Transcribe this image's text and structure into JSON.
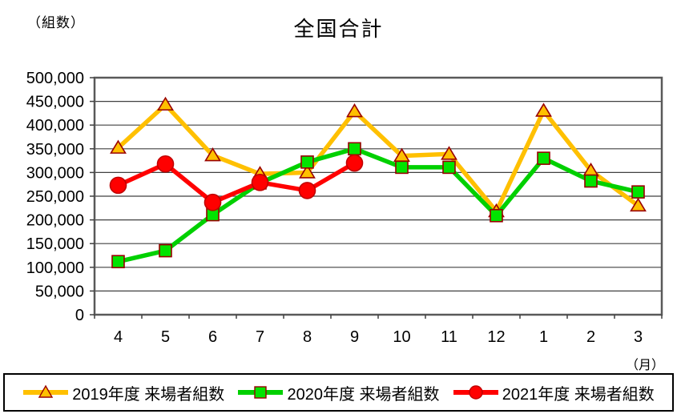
{
  "header": {
    "title": "全国合計",
    "y_axis_unit_label": "（組数）",
    "x_axis_unit_label": "（月）"
  },
  "chart_data": {
    "type": "line",
    "title": "全国合計",
    "ylabel": "（組数）",
    "xlabel": "（月）",
    "categories": [
      "4",
      "5",
      "6",
      "7",
      "8",
      "9",
      "10",
      "11",
      "12",
      "1",
      "2",
      "3"
    ],
    "ylim": [
      0,
      500000
    ],
    "ytick_step": 50000,
    "ytick_labels": [
      "0",
      "50,000",
      "100,000",
      "150,000",
      "200,000",
      "250,000",
      "300,000",
      "350,000",
      "400,000",
      "450,000",
      "500,000"
    ],
    "grid": true,
    "legend_position": "bottom",
    "frame_color": "#595959",
    "gridline_color": "#404040",
    "series": [
      {
        "name": "2019年度 来場者組数",
        "marker": "triangle",
        "line_color": "#FFC000",
        "marker_fill": "#FFC000",
        "marker_stroke": "#990000",
        "values": [
          352000,
          443000,
          336000,
          297000,
          300000,
          429000,
          335000,
          339000,
          218000,
          430000,
          304000,
          230000
        ]
      },
      {
        "name": "2020年度 来場者組数",
        "marker": "square",
        "line_color": "#00D000",
        "marker_fill": "#00E400",
        "marker_stroke": "#990000",
        "values": [
          112000,
          135000,
          211000,
          278000,
          322000,
          350000,
          311000,
          311000,
          209000,
          330000,
          282000,
          259000
        ]
      },
      {
        "name": "2021年度 来場者組数",
        "marker": "circle",
        "line_color": "#FF0000",
        "marker_fill": "#FF0000",
        "marker_stroke": "#C00000",
        "values": [
          273000,
          318000,
          237000,
          279000,
          262000,
          320000,
          null,
          null,
          null,
          null,
          null,
          null
        ]
      }
    ]
  }
}
